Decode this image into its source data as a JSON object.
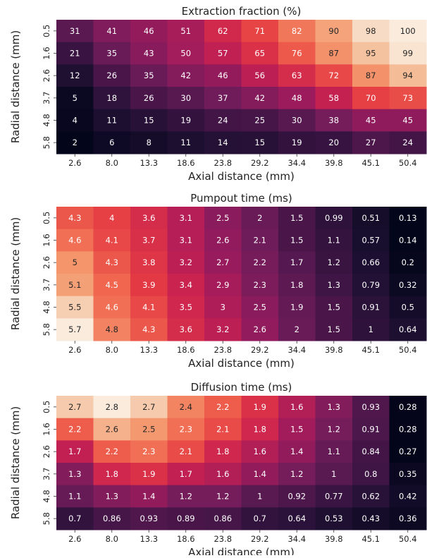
{
  "chart_data": [
    {
      "type": "heatmap",
      "title": "Extraction fraction (%)",
      "xlabel": "Axial distance (mm)",
      "ylabel": "Radial distance (mm)",
      "x": [
        "2.6",
        "8.0",
        "13.3",
        "18.6",
        "23.8",
        "29.2",
        "34.4",
        "39.8",
        "45.1",
        "50.4"
      ],
      "y": [
        "0.5",
        "1.6",
        "2.6",
        "3.7",
        "4.8",
        "5.8"
      ],
      "values": [
        [
          31,
          41,
          46,
          51,
          62,
          71,
          82,
          90,
          98,
          100
        ],
        [
          21,
          35,
          43,
          50,
          57,
          65,
          76,
          87,
          95,
          99
        ],
        [
          12,
          26,
          35,
          42,
          46,
          56,
          63,
          72,
          87,
          94
        ],
        [
          5,
          18,
          26,
          30,
          37,
          42,
          48,
          58,
          70,
          73
        ],
        [
          4,
          11,
          15,
          19,
          24,
          25,
          30,
          38,
          45,
          45
        ],
        [
          2,
          6,
          8,
          11,
          14,
          15,
          19,
          20,
          27,
          24
        ]
      ],
      "value_labels": [
        [
          "31",
          "41",
          "46",
          "51",
          "62",
          "71",
          "82",
          "90",
          "98",
          "100"
        ],
        [
          "21",
          "35",
          "43",
          "50",
          "57",
          "65",
          "76",
          "87",
          "95",
          "99"
        ],
        [
          "12",
          "26",
          "35",
          "42",
          "46",
          "56",
          "63",
          "72",
          "87",
          "94"
        ],
        [
          "5",
          "18",
          "26",
          "30",
          "37",
          "42",
          "48",
          "58",
          "70",
          "73"
        ],
        [
          "4",
          "11",
          "15",
          "19",
          "24",
          "25",
          "30",
          "38",
          "45",
          "45"
        ],
        [
          "2",
          "6",
          "8",
          "11",
          "14",
          "15",
          "19",
          "20",
          "27",
          "24"
        ]
      ],
      "colormap": "rocket",
      "vmin": 2,
      "vmax": 100,
      "colorbar": false
    },
    {
      "type": "heatmap",
      "title": "Pumpout time (ms)",
      "xlabel": "Axial distance (mm)",
      "ylabel": "Radial distance (mm)",
      "x": [
        "2.6",
        "8.0",
        "13.3",
        "18.6",
        "23.8",
        "29.2",
        "34.4",
        "39.8",
        "45.1",
        "50.4"
      ],
      "y": [
        "0.5",
        "1.6",
        "2.6",
        "3.7",
        "4.8",
        "5.8"
      ],
      "values": [
        [
          4.3,
          4,
          3.6,
          3.1,
          2.5,
          2,
          1.5,
          0.99,
          0.51,
          0.13
        ],
        [
          4.6,
          4.1,
          3.7,
          3.1,
          2.6,
          2.1,
          1.5,
          1.1,
          0.57,
          0.14
        ],
        [
          5,
          4.3,
          3.8,
          3.2,
          2.7,
          2.2,
          1.7,
          1.2,
          0.66,
          0.2
        ],
        [
          5.1,
          4.5,
          3.9,
          3.4,
          2.9,
          2.3,
          1.8,
          1.3,
          0.79,
          0.32
        ],
        [
          5.5,
          4.6,
          4.1,
          3.5,
          3,
          2.5,
          1.9,
          1.5,
          0.91,
          0.5
        ],
        [
          5.7,
          4.8,
          4.3,
          3.6,
          3.2,
          2.6,
          2,
          1.5,
          1,
          0.64
        ]
      ],
      "value_labels": [
        [
          "4.3",
          "4",
          "3.6",
          "3.1",
          "2.5",
          "2",
          "1.5",
          "0.99",
          "0.51",
          "0.13"
        ],
        [
          "4.6",
          "4.1",
          "3.7",
          "3.1",
          "2.6",
          "2.1",
          "1.5",
          "1.1",
          "0.57",
          "0.14"
        ],
        [
          "5",
          "4.3",
          "3.8",
          "3.2",
          "2.7",
          "2.2",
          "1.7",
          "1.2",
          "0.66",
          "0.2"
        ],
        [
          "5.1",
          "4.5",
          "3.9",
          "3.4",
          "2.9",
          "2.3",
          "1.8",
          "1.3",
          "0.79",
          "0.32"
        ],
        [
          "5.5",
          "4.6",
          "4.1",
          "3.5",
          "3",
          "2.5",
          "1.9",
          "1.5",
          "0.91",
          "0.5"
        ],
        [
          "5.7",
          "4.8",
          "4.3",
          "3.6",
          "3.2",
          "2.6",
          "2",
          "1.5",
          "1",
          "0.64"
        ]
      ],
      "colormap": "rocket",
      "vmin": 0.13,
      "vmax": 5.7,
      "colorbar": false
    },
    {
      "type": "heatmap",
      "title": "Diffusion time (ms)",
      "xlabel": "Axial distance (mm)",
      "ylabel": "Radial distance (mm)",
      "x": [
        "2.6",
        "8.0",
        "13.3",
        "18.6",
        "23.8",
        "29.2",
        "34.4",
        "39.8",
        "45.1",
        "50.4"
      ],
      "y": [
        "0.5",
        "1.6",
        "2.6",
        "3.7",
        "4.8",
        "5.8"
      ],
      "values": [
        [
          2.7,
          2.8,
          2.7,
          2.4,
          2.2,
          1.9,
          1.6,
          1.3,
          0.93,
          0.28
        ],
        [
          2.2,
          2.6,
          2.5,
          2.3,
          2.1,
          1.8,
          1.5,
          1.2,
          0.91,
          0.28
        ],
        [
          1.7,
          2.2,
          2.3,
          2.1,
          1.8,
          1.6,
          1.4,
          1.1,
          0.84,
          0.27
        ],
        [
          1.3,
          1.8,
          1.9,
          1.7,
          1.6,
          1.4,
          1.2,
          1,
          0.8,
          0.35
        ],
        [
          1.1,
          1.3,
          1.4,
          1.2,
          1.2,
          1,
          0.92,
          0.77,
          0.62,
          0.42
        ],
        [
          0.7,
          0.86,
          0.93,
          0.89,
          0.86,
          0.7,
          0.64,
          0.53,
          0.43,
          0.36
        ]
      ],
      "value_labels": [
        [
          "2.7",
          "2.8",
          "2.7",
          "2.4",
          "2.2",
          "1.9",
          "1.6",
          "1.3",
          "0.93",
          "0.28"
        ],
        [
          "2.2",
          "2.6",
          "2.5",
          "2.3",
          "2.1",
          "1.8",
          "1.5",
          "1.2",
          "0.91",
          "0.28"
        ],
        [
          "1.7",
          "2.2",
          "2.3",
          "2.1",
          "1.8",
          "1.6",
          "1.4",
          "1.1",
          "0.84",
          "0.27"
        ],
        [
          "1.3",
          "1.8",
          "1.9",
          "1.7",
          "1.6",
          "1.4",
          "1.2",
          "1",
          "0.8",
          "0.35"
        ],
        [
          "1.1",
          "1.3",
          "1.4",
          "1.2",
          "1.2",
          "1",
          "0.92",
          "0.77",
          "0.62",
          "0.42"
        ],
        [
          "0.7",
          "0.86",
          "0.93",
          "0.89",
          "0.86",
          "0.7",
          "0.64",
          "0.53",
          "0.43",
          "0.36"
        ]
      ],
      "colormap": "rocket",
      "vmin": 0.27,
      "vmax": 2.8,
      "colorbar": false
    }
  ]
}
